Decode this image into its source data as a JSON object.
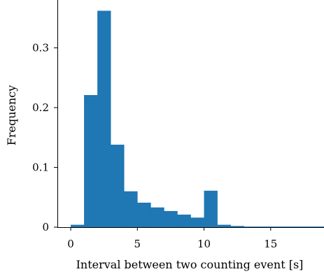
{
  "chart_data": {
    "type": "bar",
    "title": "",
    "xlabel": "Interval between two counting event [s]",
    "ylabel": "Frequency",
    "xlim": [
      -1,
      19
    ],
    "ylim": [
      0,
      0.38
    ],
    "xticks": [
      0,
      5,
      10,
      15
    ],
    "xtick_labels": [
      "0",
      "5",
      "10",
      "15"
    ],
    "yticks": [
      0,
      0.1,
      0.2,
      0.3
    ],
    "ytick_labels": [
      "0",
      "0.1",
      "0.2",
      "0.3"
    ],
    "bar_color": "#1f77b4",
    "bins": [
      {
        "x0": 0.0,
        "x1": 1.0,
        "value": 0.004
      },
      {
        "x0": 1.0,
        "x1": 2.0,
        "value": 0.221
      },
      {
        "x0": 2.0,
        "x1": 3.0,
        "value": 0.362
      },
      {
        "x0": 3.0,
        "x1": 4.0,
        "value": 0.138
      },
      {
        "x0": 4.0,
        "x1": 5.0,
        "value": 0.06
      },
      {
        "x0": 5.0,
        "x1": 6.0,
        "value": 0.041
      },
      {
        "x0": 6.0,
        "x1": 7.0,
        "value": 0.033
      },
      {
        "x0": 7.0,
        "x1": 8.0,
        "value": 0.027
      },
      {
        "x0": 8.0,
        "x1": 9.0,
        "value": 0.021
      },
      {
        "x0": 9.0,
        "x1": 10.0,
        "value": 0.016
      },
      {
        "x0": 10.0,
        "x1": 11.0,
        "value": 0.061
      },
      {
        "x0": 11.0,
        "x1": 12.0,
        "value": 0.004
      },
      {
        "x0": 12.0,
        "x1": 13.0,
        "value": 0.002
      },
      {
        "x0": 13.0,
        "x1": 14.0,
        "value": 0.001
      },
      {
        "x0": 14.0,
        "x1": 15.0,
        "value": 0.001
      },
      {
        "x0": 15.0,
        "x1": 16.0,
        "value": 0.001
      },
      {
        "x0": 16.0,
        "x1": 17.0,
        "value": 0.001
      },
      {
        "x0": 17.0,
        "x1": 18.0,
        "value": 0.001
      },
      {
        "x0": 18.0,
        "x1": 19.0,
        "value": 0.001
      }
    ]
  }
}
